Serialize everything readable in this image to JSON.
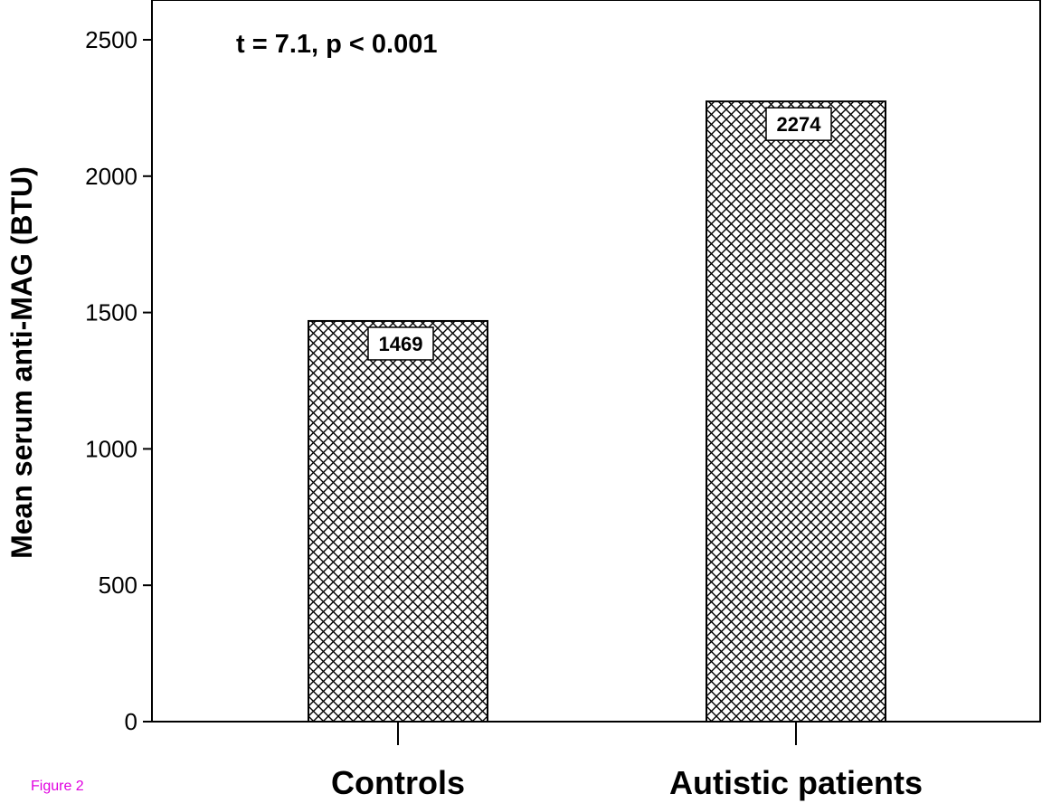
{
  "figure_label": "Figure 2",
  "chart_data": {
    "type": "bar",
    "categories": [
      "Controls",
      "Autistic patients"
    ],
    "values": [
      1469,
      2274
    ],
    "data_labels": [
      "1469",
      "2274"
    ],
    "title": "",
    "xlabel": "",
    "ylabel": "Mean serum anti-MAG (BTU)",
    "ylim": [
      0,
      2650
    ],
    "yticks": [
      0,
      500,
      1000,
      1500,
      2000,
      2500
    ],
    "annotation": "t = 7.1, p < 0.001",
    "bar_pattern": "crosshatch",
    "grid": false,
    "legend": "none"
  }
}
